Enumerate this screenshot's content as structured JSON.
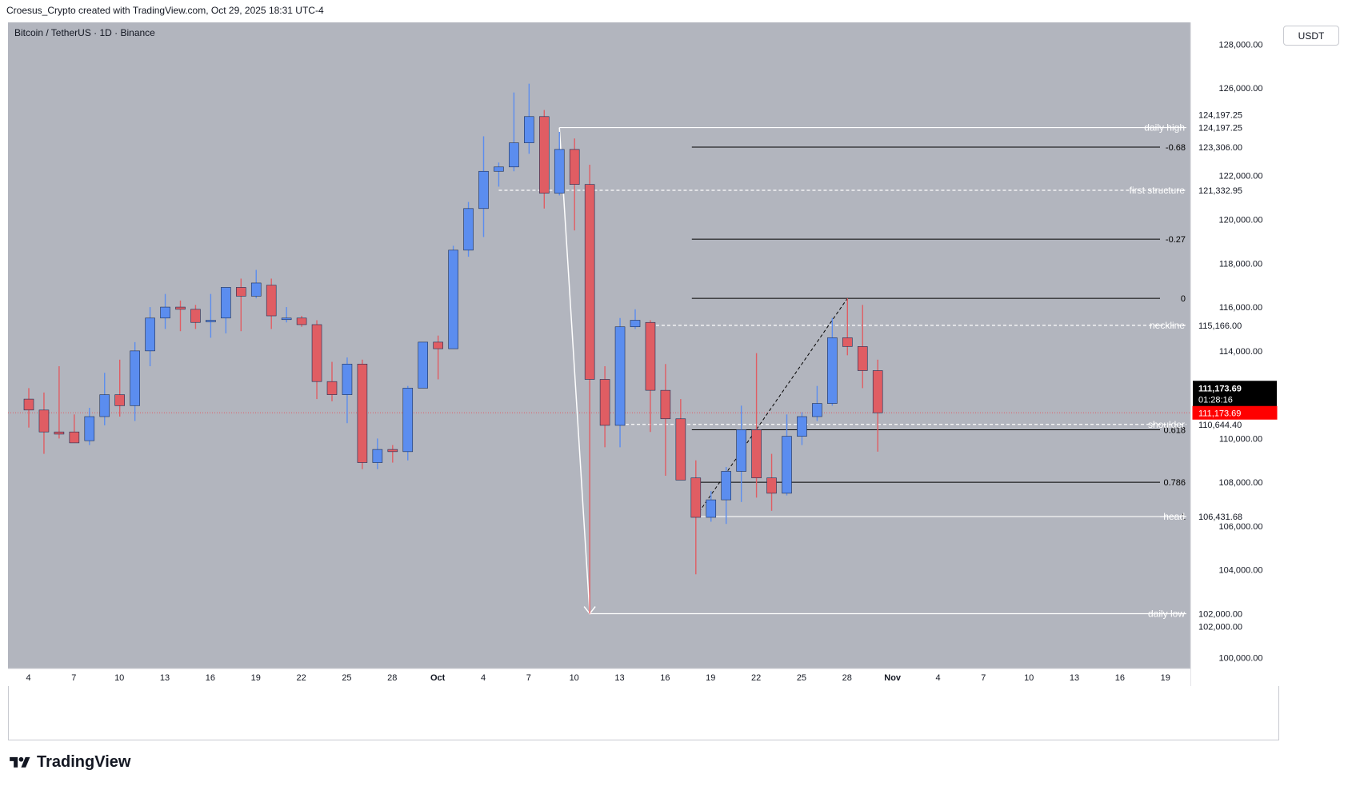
{
  "header": {
    "caption": "Croesus_Crypto created with TradingView.com, Oct 29, 2025 18:31 UTC-4"
  },
  "symbol": {
    "title": "Bitcoin / TetherUS · 1D · Binance"
  },
  "currency": "USDT",
  "brand": {
    "name": "TradingView",
    "logo_icon": "tradingview-logo-icon"
  },
  "colors": {
    "up": "#5b8def",
    "down": "#e05d63",
    "background": "#b2b5be",
    "annotation": "#ffffff",
    "fib": "#000000",
    "price_label": "#ff0000",
    "countdown_label": "#000000"
  },
  "chart_data": {
    "type": "candlestick",
    "title": "Bitcoin / TetherUS · 1D · Binance",
    "ylim": [
      99500,
      129000
    ],
    "y_ticks": [
      100000,
      102000,
      104000,
      106000,
      108000,
      110000,
      114000,
      116000,
      118000,
      120000,
      122000,
      126000,
      128000
    ],
    "x_ticks": [
      "4",
      "7",
      "10",
      "13",
      "16",
      "19",
      "22",
      "25",
      "28",
      "Oct",
      "4",
      "7",
      "10",
      "13",
      "16",
      "19",
      "22",
      "25",
      "28",
      "Nov",
      "4",
      "7",
      "10",
      "13",
      "16",
      "19"
    ],
    "series": [
      {
        "date": "2025-09-04",
        "open": 111800,
        "high": 112300,
        "low": 110500,
        "close": 111300
      },
      {
        "date": "2025-09-05",
        "open": 111300,
        "high": 112100,
        "low": 109300,
        "close": 110300
      },
      {
        "date": "2025-09-06",
        "open": 110300,
        "high": 113300,
        "low": 110000,
        "close": 110200
      },
      {
        "date": "2025-09-07",
        "open": 110300,
        "high": 111100,
        "low": 109800,
        "close": 109800
      },
      {
        "date": "2025-09-08",
        "open": 109900,
        "high": 111400,
        "low": 109700,
        "close": 111000
      },
      {
        "date": "2025-09-09",
        "open": 111000,
        "high": 113000,
        "low": 110600,
        "close": 112000
      },
      {
        "date": "2025-09-10",
        "open": 112000,
        "high": 113600,
        "low": 111000,
        "close": 111500
      },
      {
        "date": "2025-09-11",
        "open": 111500,
        "high": 114400,
        "low": 110800,
        "close": 114000
      },
      {
        "date": "2025-09-12",
        "open": 114000,
        "high": 116000,
        "low": 113300,
        "close": 115500
      },
      {
        "date": "2025-09-13",
        "open": 115500,
        "high": 116600,
        "low": 115000,
        "close": 116000
      },
      {
        "date": "2025-09-14",
        "open": 116000,
        "high": 116300,
        "low": 114900,
        "close": 115900
      },
      {
        "date": "2025-09-15",
        "open": 115900,
        "high": 116100,
        "low": 115000,
        "close": 115300
      },
      {
        "date": "2025-09-16",
        "open": 115400,
        "high": 116600,
        "low": 114600,
        "close": 115400
      },
      {
        "date": "2025-09-17",
        "open": 115500,
        "high": 116900,
        "low": 114800,
        "close": 116900
      },
      {
        "date": "2025-09-18",
        "open": 116900,
        "high": 117300,
        "low": 114900,
        "close": 116500
      },
      {
        "date": "2025-09-19",
        "open": 116500,
        "high": 117700,
        "low": 116400,
        "close": 117100
      },
      {
        "date": "2025-09-20",
        "open": 117000,
        "high": 117300,
        "low": 115000,
        "close": 115600
      },
      {
        "date": "2025-09-21",
        "open": 115500,
        "high": 116000,
        "low": 115300,
        "close": 115500
      },
      {
        "date": "2025-09-22",
        "open": 115500,
        "high": 115600,
        "low": 115100,
        "close": 115200
      },
      {
        "date": "2025-09-23",
        "open": 115200,
        "high": 115400,
        "low": 111800,
        "close": 112600
      },
      {
        "date": "2025-09-24",
        "open": 112600,
        "high": 113500,
        "low": 111700,
        "close": 112000
      },
      {
        "date": "2025-09-25",
        "open": 112000,
        "high": 113700,
        "low": 110700,
        "close": 113400
      },
      {
        "date": "2025-09-26",
        "open": 113400,
        "high": 113600,
        "low": 108600,
        "close": 108900
      },
      {
        "date": "2025-09-27",
        "open": 108900,
        "high": 110000,
        "low": 108600,
        "close": 109500
      },
      {
        "date": "2025-09-28",
        "open": 109500,
        "high": 109700,
        "low": 108900,
        "close": 109400
      },
      {
        "date": "2025-09-29",
        "open": 109400,
        "high": 112400,
        "low": 109000,
        "close": 112300
      },
      {
        "date": "2025-09-30",
        "open": 112300,
        "high": 114400,
        "low": 112300,
        "close": 114400
      },
      {
        "date": "2025-10-01",
        "open": 114400,
        "high": 114700,
        "low": 112700,
        "close": 114100
      },
      {
        "date": "2025-10-02",
        "open": 114100,
        "high": 118800,
        "low": 114100,
        "close": 118600
      },
      {
        "date": "2025-10-03",
        "open": 118600,
        "high": 120800,
        "low": 118300,
        "close": 120500
      },
      {
        "date": "2025-10-04",
        "open": 120500,
        "high": 123800,
        "low": 119200,
        "close": 122200
      },
      {
        "date": "2025-10-05",
        "open": 122200,
        "high": 122600,
        "low": 121500,
        "close": 122400
      },
      {
        "date": "2025-10-06",
        "open": 122400,
        "high": 125800,
        "low": 122200,
        "close": 123500
      },
      {
        "date": "2025-10-07",
        "open": 123500,
        "high": 126200,
        "low": 123000,
        "close": 124700
      },
      {
        "date": "2025-10-08",
        "open": 124700,
        "high": 125000,
        "low": 120500,
        "close": 121200
      },
      {
        "date": "2025-10-09",
        "open": 121200,
        "high": 124000,
        "low": 121100,
        "close": 123200
      },
      {
        "date": "2025-10-10",
        "open": 123200,
        "high": 123700,
        "low": 119500,
        "close": 121600
      },
      {
        "date": "2025-10-11",
        "open": 121600,
        "high": 122500,
        "low": 102000,
        "close": 112700
      },
      {
        "date": "2025-10-12",
        "open": 112700,
        "high": 113300,
        "low": 109600,
        "close": 110600
      },
      {
        "date": "2025-10-13",
        "open": 110600,
        "high": 115500,
        "low": 109600,
        "close": 115100
      },
      {
        "date": "2025-10-14",
        "open": 115100,
        "high": 115900,
        "low": 115000,
        "close": 115400
      },
      {
        "date": "2025-10-15",
        "open": 115300,
        "high": 115400,
        "low": 110300,
        "close": 112200
      },
      {
        "date": "2025-10-16",
        "open": 112200,
        "high": 113400,
        "low": 108300,
        "close": 110900
      },
      {
        "date": "2025-10-17",
        "open": 110900,
        "high": 111800,
        "low": 108300,
        "close": 108100
      },
      {
        "date": "2025-10-18",
        "open": 108200,
        "high": 109000,
        "low": 103800,
        "close": 106400
      },
      {
        "date": "2025-10-19",
        "open": 106400,
        "high": 107600,
        "low": 106200,
        "close": 107200
      },
      {
        "date": "2025-10-20",
        "open": 107200,
        "high": 108700,
        "low": 106100,
        "close": 108500
      },
      {
        "date": "2025-10-21",
        "open": 108500,
        "high": 111500,
        "low": 107100,
        "close": 110400
      },
      {
        "date": "2025-10-22",
        "open": 110400,
        "high": 113900,
        "low": 107300,
        "close": 108200
      },
      {
        "date": "2025-10-23",
        "open": 108200,
        "high": 109300,
        "low": 106700,
        "close": 107500
      },
      {
        "date": "2025-10-24",
        "open": 107500,
        "high": 111100,
        "low": 107400,
        "close": 110100
      },
      {
        "date": "2025-10-25",
        "open": 110100,
        "high": 111200,
        "low": 109700,
        "close": 111000
      },
      {
        "date": "2025-10-26",
        "open": 111000,
        "high": 112400,
        "low": 110800,
        "close": 111600
      },
      {
        "date": "2025-10-27",
        "open": 111600,
        "high": 115500,
        "low": 111500,
        "close": 114600
      },
      {
        "date": "2025-10-28",
        "open": 114600,
        "high": 116400,
        "low": 113800,
        "close": 114200
      },
      {
        "date": "2025-10-29",
        "open": 114200,
        "high": 116100,
        "low": 112300,
        "close": 113100
      },
      {
        "date": "2025-10-30",
        "open": 113100,
        "high": 113600,
        "low": 109400,
        "close": 111174
      }
    ],
    "horizontal_levels": [
      {
        "name": "daily-high",
        "label": "daily high",
        "price": 124197.25,
        "price_label": "124,197.25",
        "start": "2025-10-09",
        "style": "solid"
      },
      {
        "name": "first-structure",
        "label": "first structure",
        "price": 121332.95,
        "price_label": "121,332.95",
        "start": "2025-10-05",
        "style": "dashed"
      },
      {
        "name": "neckline",
        "label": "neckline",
        "price": 115166.0,
        "price_label": "115,166.00",
        "start": "2025-10-15",
        "style": "dashed"
      },
      {
        "name": "shoulder",
        "label": "shoulder",
        "price": 110644.4,
        "price_label": "110,644.40",
        "start": "2025-10-13",
        "style": "dashed"
      },
      {
        "name": "head",
        "label": "head",
        "price": 106431.68,
        "price_label": "106,431.68",
        "start": "2025-10-18",
        "style": "solid"
      },
      {
        "name": "daily-low",
        "label": "daily low",
        "price": 102000.0,
        "price_label": "102,000.00",
        "start": "2025-10-11",
        "style": "solid"
      }
    ],
    "extra_price_labels": [
      {
        "name": "high-top",
        "price_label": "124,197.25"
      },
      {
        "name": "level-123306",
        "price_label": "123,306.00"
      },
      {
        "name": "low-bottom",
        "price_label": "102,000.00"
      }
    ],
    "fib_levels": [
      {
        "label": "-0.68",
        "price": 123306
      },
      {
        "label": "-0.27",
        "price": 119100
      },
      {
        "label": "0",
        "price": 116400
      },
      {
        "label": "0.618",
        "price": 110400
      },
      {
        "label": "0.786",
        "price": 108000
      },
      {
        "label": "1",
        "price": 106431.68
      }
    ],
    "fib_start": "2025-10-18",
    "trend_lines": [
      {
        "name": "drop-arrow",
        "from": {
          "date": "2025-10-09",
          "price": 124197.25
        },
        "to": {
          "date": "2025-10-11",
          "price": 102000
        },
        "style": "solid",
        "arrow": true
      },
      {
        "name": "fib-diagonal",
        "from": {
          "date": "2025-10-18",
          "price": 106431.68
        },
        "to": {
          "date": "2025-10-28",
          "price": 116400
        },
        "style": "dashed",
        "arrow": false
      }
    ],
    "current_price": {
      "price": 111173.69,
      "price_label": "111,173.69",
      "countdown": "01:28:16"
    }
  }
}
